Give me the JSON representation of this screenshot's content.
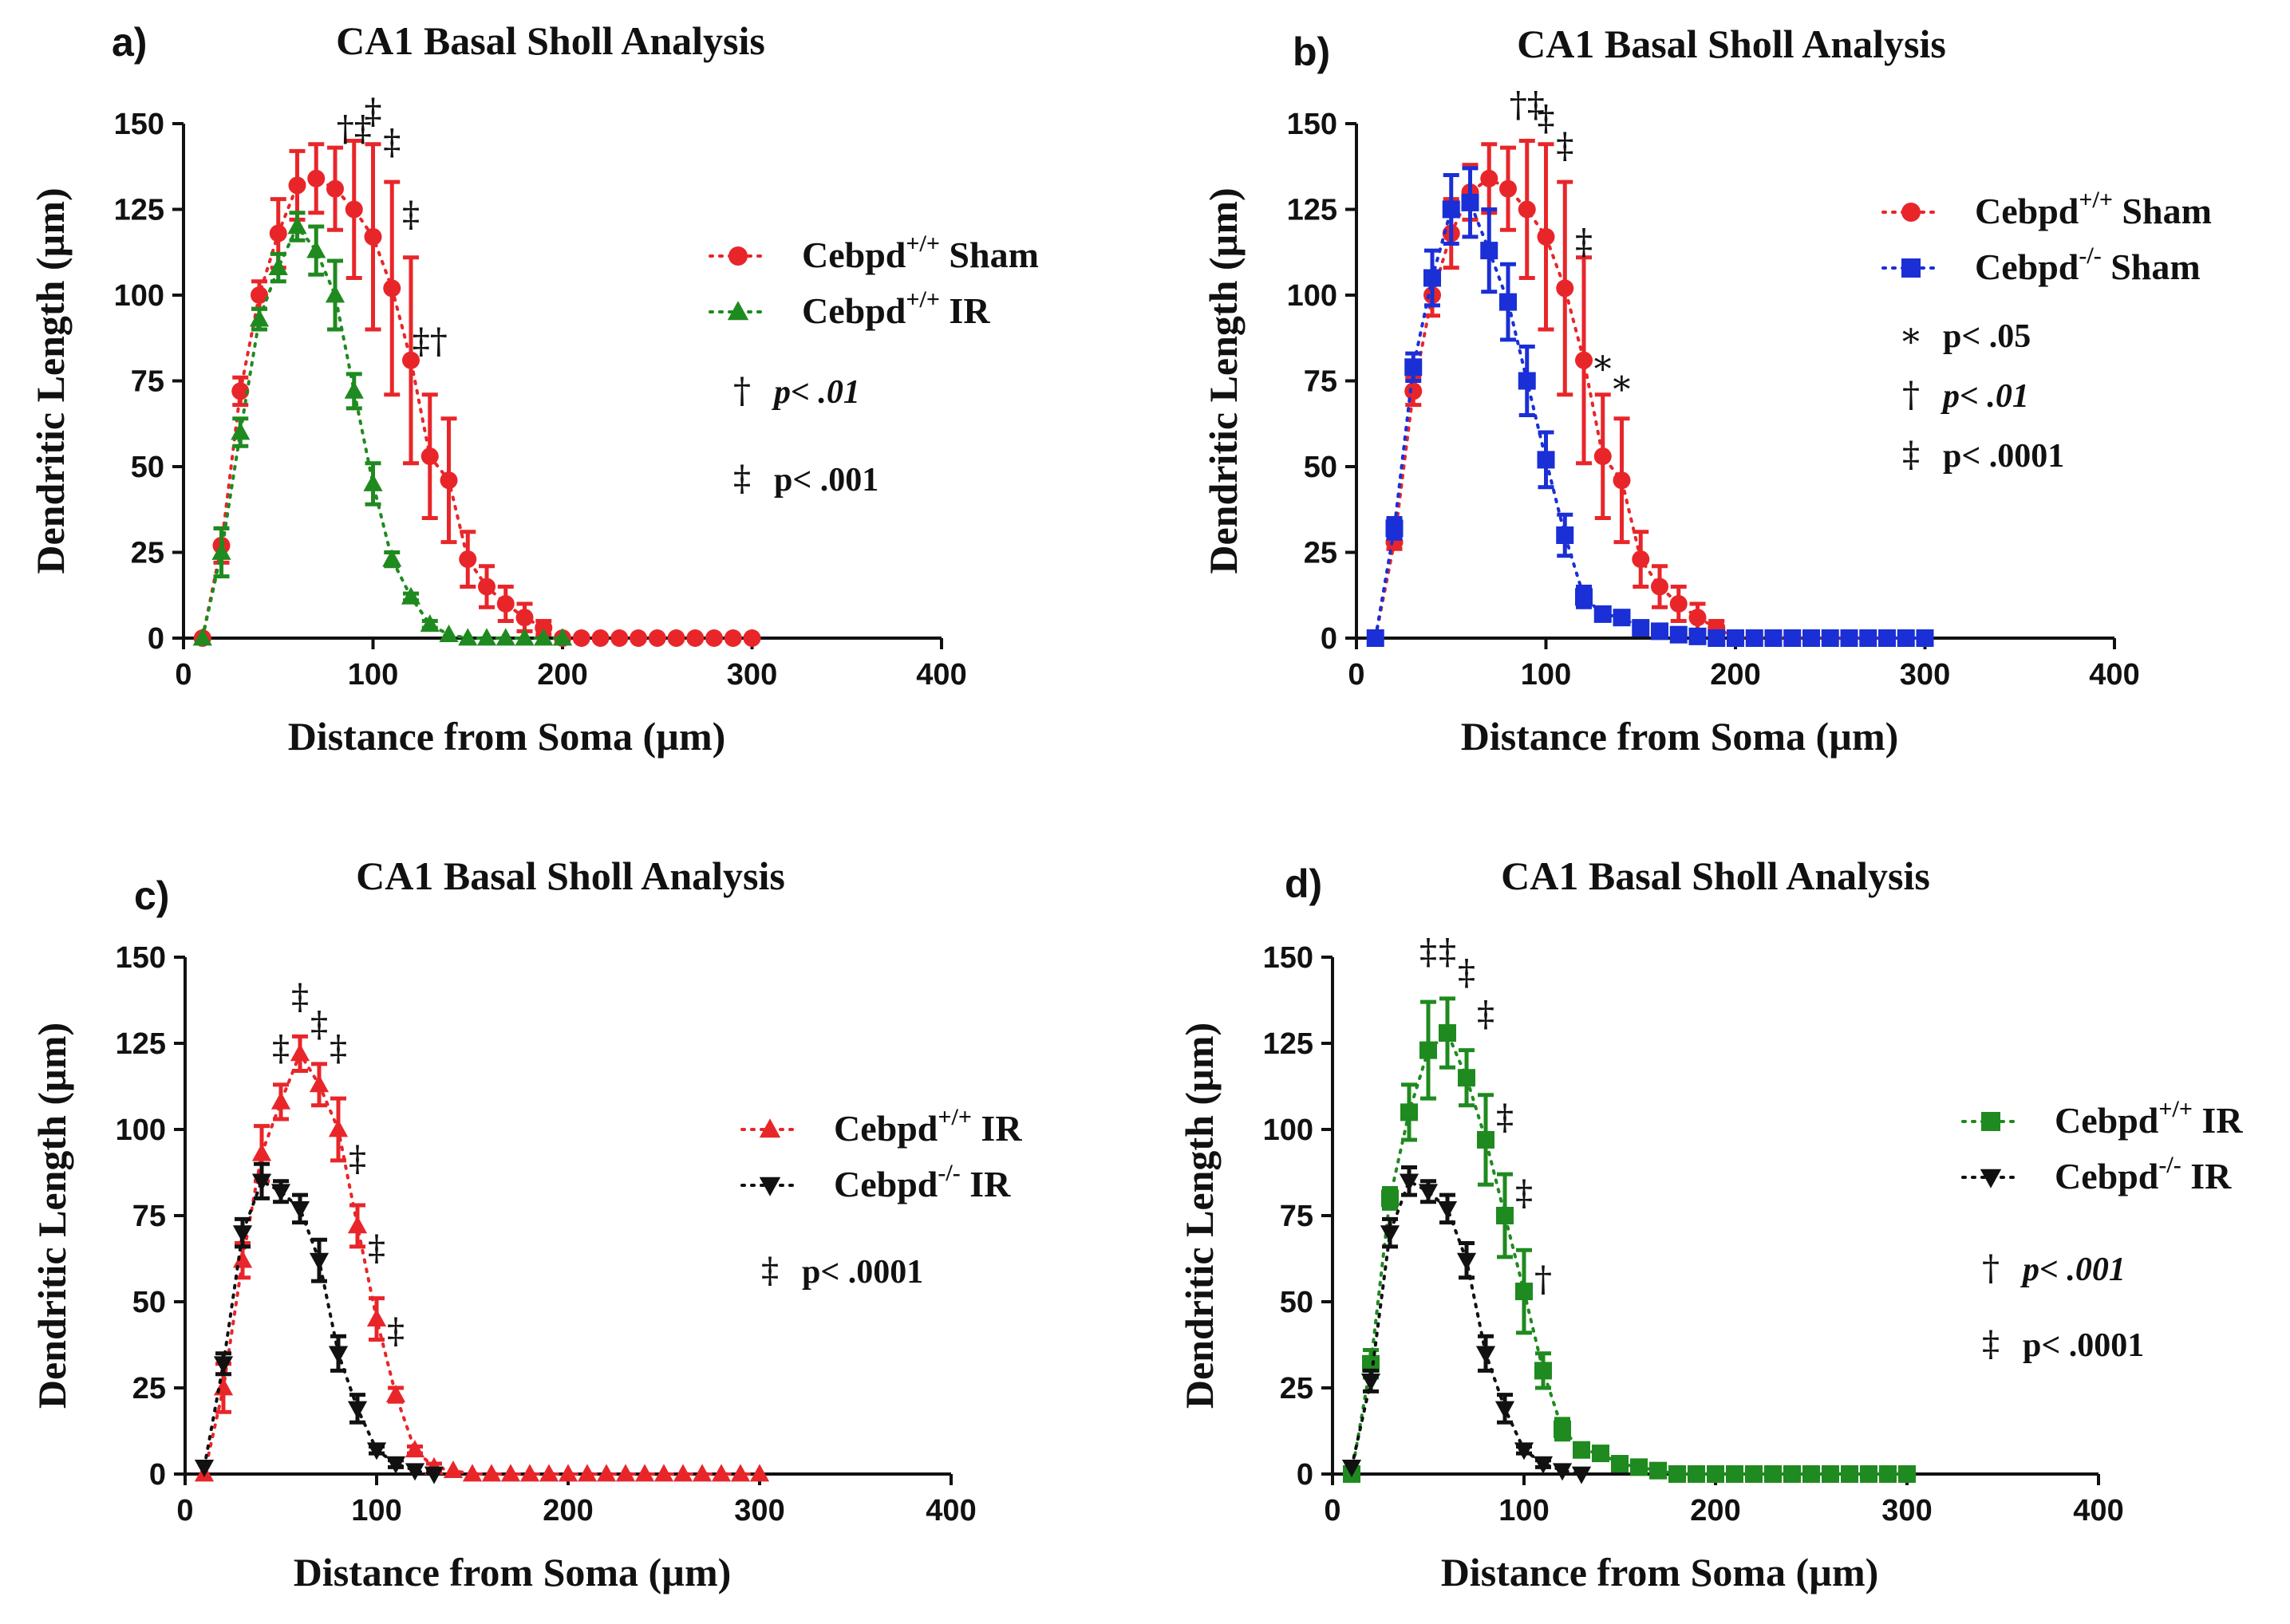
{
  "chart_data": [
    {
      "panel": "a)",
      "type": "line",
      "title": "CA1 Basal Sholl Analysis",
      "xlabel": "Distance from Soma (µm)",
      "ylabel": "Dendritic Length (µm)",
      "xlim": [
        0,
        400
      ],
      "ylim": [
        0,
        150
      ],
      "xticks": [
        "0",
        "100",
        "200",
        "300",
        "400"
      ],
      "yticks": [
        "0",
        "25",
        "50",
        "75",
        "100",
        "125",
        "150"
      ],
      "series": [
        {
          "name": "Cebpd+/+ Sham",
          "label_base": "Cebpd",
          "label_sup": "+/+",
          "label_tail": " Sham",
          "color": "#e8262a",
          "marker": "circle",
          "x": [
            10,
            20,
            30,
            40,
            50,
            60,
            70,
            80,
            90,
            100,
            110,
            120,
            130,
            140,
            150,
            160,
            170,
            180,
            190,
            200,
            210,
            220,
            230,
            240,
            250,
            260,
            270,
            280,
            290,
            300
          ],
          "y": [
            0,
            27,
            72,
            100,
            118,
            132,
            134,
            131,
            125,
            117,
            102,
            81,
            53,
            46,
            23,
            15,
            10,
            6,
            3,
            0,
            0,
            0,
            0,
            0,
            0,
            0,
            0,
            0,
            0,
            0
          ],
          "err": [
            0,
            5,
            4,
            4,
            10,
            10,
            10,
            12,
            20,
            27,
            31,
            30,
            18,
            18,
            8,
            6,
            5,
            4,
            2,
            0,
            0,
            0,
            0,
            0,
            0,
            0,
            0,
            0,
            0,
            0
          ]
        },
        {
          "name": "Cebpd+/+ IR",
          "label_base": "Cebpd",
          "label_sup": "+/+",
          "label_tail": " IR",
          "color": "#1f8a1f",
          "marker": "triangle-up",
          "x": [
            10,
            20,
            30,
            40,
            50,
            60,
            70,
            80,
            90,
            100,
            110,
            120,
            130,
            140,
            150,
            160,
            170,
            180,
            190,
            200
          ],
          "y": [
            0,
            25,
            60,
            93,
            108,
            120,
            113,
            100,
            72,
            45,
            23,
            12,
            4,
            1,
            0,
            0,
            0,
            0,
            0,
            0
          ],
          "err": [
            0,
            7,
            4,
            3,
            4,
            4,
            7,
            10,
            5,
            6,
            2,
            1,
            1,
            0,
            0,
            0,
            0,
            0,
            0,
            0
          ]
        }
      ],
      "legend_sig": [
        {
          "symbol": "†",
          "text": "p< .01",
          "italic_p": true
        },
        {
          "symbol": "‡",
          "text": "p< .001",
          "italic_p": false
        }
      ],
      "annotations": [
        {
          "x": 90,
          "y": 145,
          "text": "†‡"
        },
        {
          "x": 100,
          "y": 150,
          "text": "‡"
        },
        {
          "x": 110,
          "y": 141,
          "text": "‡"
        },
        {
          "x": 120,
          "y": 120,
          "text": "‡"
        },
        {
          "x": 130,
          "y": 83,
          "text": "‡†"
        }
      ]
    },
    {
      "panel": "b)",
      "type": "line",
      "title": "CA1 Basal Sholl Analysis",
      "xlabel": "Distance from Soma (µm)",
      "ylabel": "Dendritic Length (µm)",
      "xlim": [
        0,
        400
      ],
      "ylim": [
        0,
        150
      ],
      "xticks": [
        "0",
        "100",
        "200",
        "300",
        "400"
      ],
      "yticks": [
        "0",
        "25",
        "50",
        "75",
        "100",
        "125",
        "150"
      ],
      "series": [
        {
          "name": "Cebpd+/+ Sham",
          "label_base": "Cebpd",
          "label_sup": "+/+",
          "label_tail": " Sham",
          "color": "#e8262a",
          "marker": "circle",
          "x": [
            10,
            20,
            30,
            40,
            50,
            60,
            70,
            80,
            90,
            100,
            110,
            120,
            130,
            140,
            150,
            160,
            170,
            180,
            190,
            200,
            210,
            220,
            230,
            240,
            250,
            260,
            270,
            280,
            290,
            300
          ],
          "y": [
            0,
            28,
            72,
            100,
            118,
            130,
            134,
            131,
            125,
            117,
            102,
            81,
            53,
            46,
            23,
            15,
            10,
            6,
            3,
            0,
            0,
            0,
            0,
            0,
            0,
            0,
            0,
            0,
            0,
            0
          ],
          "err": [
            0,
            2,
            4,
            6,
            10,
            8,
            10,
            12,
            20,
            27,
            31,
            30,
            18,
            18,
            8,
            6,
            5,
            4,
            2,
            0,
            0,
            0,
            0,
            0,
            0,
            0,
            0,
            0,
            0,
            0
          ]
        },
        {
          "name": "Cebpd-/- Sham",
          "label_base": "Cebpd",
          "label_sup": "-/-",
          "label_tail": " Sham",
          "color": "#1a2fd6",
          "marker": "square",
          "x": [
            10,
            20,
            30,
            40,
            50,
            60,
            70,
            80,
            90,
            100,
            110,
            120,
            130,
            140,
            150,
            160,
            170,
            180,
            190,
            200,
            210,
            220,
            230,
            240,
            250,
            260,
            270,
            280,
            290,
            300
          ],
          "y": [
            0,
            32,
            79,
            105,
            125,
            127,
            113,
            98,
            75,
            52,
            30,
            12,
            7,
            6,
            3,
            2,
            1,
            0.5,
            0,
            0,
            0,
            0,
            0,
            0,
            0,
            0,
            0,
            0,
            0,
            0
          ],
          "err": [
            0,
            3,
            4,
            8,
            10,
            10,
            12,
            11,
            10,
            8,
            6,
            3,
            1,
            1,
            0.5,
            0,
            0,
            0,
            0,
            0,
            0,
            0,
            0,
            0,
            0,
            0,
            0,
            0,
            0,
            0
          ]
        }
      ],
      "legend_sig": [
        {
          "symbol": "∗",
          "text": "p< .05",
          "italic_p": false
        },
        {
          "symbol": "†",
          "text": "p< .01",
          "italic_p": true
        },
        {
          "symbol": "‡",
          "text": "p< .0001",
          "italic_p": false
        }
      ],
      "annotations": [
        {
          "x": 90,
          "y": 152,
          "text": "†‡"
        },
        {
          "x": 100,
          "y": 148,
          "text": "‡"
        },
        {
          "x": 110,
          "y": 140,
          "text": "‡"
        },
        {
          "x": 120,
          "y": 112,
          "text": "‡"
        },
        {
          "x": 130,
          "y": 77,
          "text": "∗"
        },
        {
          "x": 140,
          "y": 71,
          "text": "∗"
        }
      ]
    },
    {
      "panel": "c)",
      "type": "line",
      "title": "CA1 Basal Sholl Analysis",
      "xlabel": "Distance from Soma (µm)",
      "ylabel": "Dendritic Length  (µm)",
      "xlim": [
        0,
        400
      ],
      "ylim": [
        0,
        150
      ],
      "xticks": [
        "0",
        "100",
        "200",
        "300",
        "400"
      ],
      "yticks": [
        "0",
        "25",
        "50",
        "75",
        "100",
        "125",
        "150"
      ],
      "series": [
        {
          "name": "Cebpd+/+ IR",
          "label_base": "Cebpd",
          "label_sup": "+/+",
          "label_tail": " IR",
          "color": "#e8262a",
          "marker": "triangle-up",
          "x": [
            10,
            20,
            30,
            40,
            50,
            60,
            70,
            80,
            90,
            100,
            110,
            120,
            130,
            140,
            150,
            160,
            170,
            180,
            190,
            200,
            210,
            220,
            230,
            240,
            250,
            260,
            270,
            280,
            290,
            300
          ],
          "y": [
            0,
            25,
            62,
            93,
            108,
            122,
            113,
            100,
            72,
            45,
            23,
            7,
            2,
            1,
            0,
            0,
            0,
            0,
            0,
            0,
            0,
            0,
            0,
            0,
            0,
            0,
            0,
            0,
            0,
            0
          ],
          "err": [
            0,
            7,
            5,
            8,
            5,
            5,
            6,
            9,
            6,
            6,
            2,
            1,
            1,
            0,
            0,
            0,
            0,
            0,
            0,
            0,
            0,
            0,
            0,
            0,
            0,
            0,
            0,
            0,
            0,
            0
          ]
        },
        {
          "name": "Cebpd-/- IR",
          "label_base": "Cebpd",
          "label_sup": "-/-",
          "label_tail": " IR",
          "color": "#111111",
          "marker": "triangle-down",
          "x": [
            10,
            20,
            30,
            40,
            50,
            60,
            70,
            80,
            90,
            100,
            110,
            120,
            130
          ],
          "y": [
            2,
            32,
            70,
            85,
            82,
            77,
            62,
            35,
            19,
            7,
            3,
            1,
            0
          ],
          "err": [
            0,
            3,
            4,
            5,
            3,
            4,
            6,
            5,
            4,
            1,
            1,
            0,
            0
          ]
        }
      ],
      "legend_sig": [
        {
          "symbol": "‡",
          "text": "p< .0001",
          "italic_p": false
        }
      ],
      "annotations": [
        {
          "x": 50,
          "y": 120,
          "text": "‡"
        },
        {
          "x": 60,
          "y": 135,
          "text": "‡"
        },
        {
          "x": 70,
          "y": 127,
          "text": "‡"
        },
        {
          "x": 80,
          "y": 120,
          "text": "‡"
        },
        {
          "x": 90,
          "y": 88,
          "text": "‡"
        },
        {
          "x": 100,
          "y": 62,
          "text": "‡"
        },
        {
          "x": 110,
          "y": 38,
          "text": "‡"
        }
      ]
    },
    {
      "panel": "d)",
      "type": "line",
      "title": "CA1 Basal Sholl Analysis",
      "xlabel": "Distance from Soma (µm)",
      "ylabel": "Dendritic Length (µm)",
      "xlim": [
        0,
        400
      ],
      "ylim": [
        0,
        150
      ],
      "xticks": [
        "0",
        "100",
        "200",
        "300",
        "400"
      ],
      "yticks": [
        "0",
        "25",
        "50",
        "75",
        "100",
        "125",
        "150"
      ],
      "series": [
        {
          "name": "Cebpd+/+ IR",
          "label_base": "Cebpd",
          "label_sup": "+/+",
          "label_tail": " IR",
          "color": "#1f8a1f",
          "marker": "square",
          "x": [
            10,
            20,
            30,
            40,
            50,
            60,
            70,
            80,
            90,
            100,
            110,
            120,
            130,
            140,
            150,
            160,
            170,
            180,
            190,
            200,
            210,
            220,
            230,
            240,
            250,
            260,
            270,
            280,
            290,
            300
          ],
          "y": [
            0,
            32,
            80,
            105,
            123,
            128,
            115,
            97,
            75,
            53,
            30,
            13,
            7,
            6,
            3,
            2,
            1,
            0,
            0,
            0,
            0,
            0,
            0,
            0,
            0,
            0,
            0,
            0,
            0,
            0
          ],
          "err": [
            0,
            4,
            3,
            8,
            14,
            10,
            8,
            13,
            12,
            12,
            5,
            3,
            1,
            1,
            0.5,
            0,
            0,
            0,
            0,
            0,
            0,
            0,
            0,
            0,
            0,
            0,
            0,
            0,
            0,
            0
          ]
        },
        {
          "name": "Cebpd-/- IR",
          "label_base": "Cebpd",
          "label_sup": "-/-",
          "label_tail": " IR",
          "color": "#111111",
          "marker": "triangle-down",
          "x": [
            10,
            20,
            30,
            40,
            50,
            60,
            70,
            80,
            90,
            100,
            110,
            120,
            130
          ],
          "y": [
            2,
            27,
            70,
            85,
            82,
            77,
            62,
            35,
            19,
            7,
            3,
            1,
            0
          ],
          "err": [
            0,
            3,
            4,
            4,
            3,
            4,
            5,
            5,
            4,
            1,
            1,
            0,
            0
          ]
        }
      ],
      "legend_sig": [
        {
          "symbol": "†",
          "text": "p< .001",
          "italic_p": true
        },
        {
          "symbol": "‡",
          "text": "p< .0001",
          "italic_p": false
        }
      ],
      "annotations": [
        {
          "x": 50,
          "y": 148,
          "text": "‡"
        },
        {
          "x": 60,
          "y": 148,
          "text": "‡"
        },
        {
          "x": 70,
          "y": 142,
          "text": "‡"
        },
        {
          "x": 80,
          "y": 130,
          "text": "‡"
        },
        {
          "x": 90,
          "y": 100,
          "text": "‡"
        },
        {
          "x": 100,
          "y": 78,
          "text": "‡"
        },
        {
          "x": 110,
          "y": 53,
          "text": "†"
        }
      ]
    }
  ]
}
